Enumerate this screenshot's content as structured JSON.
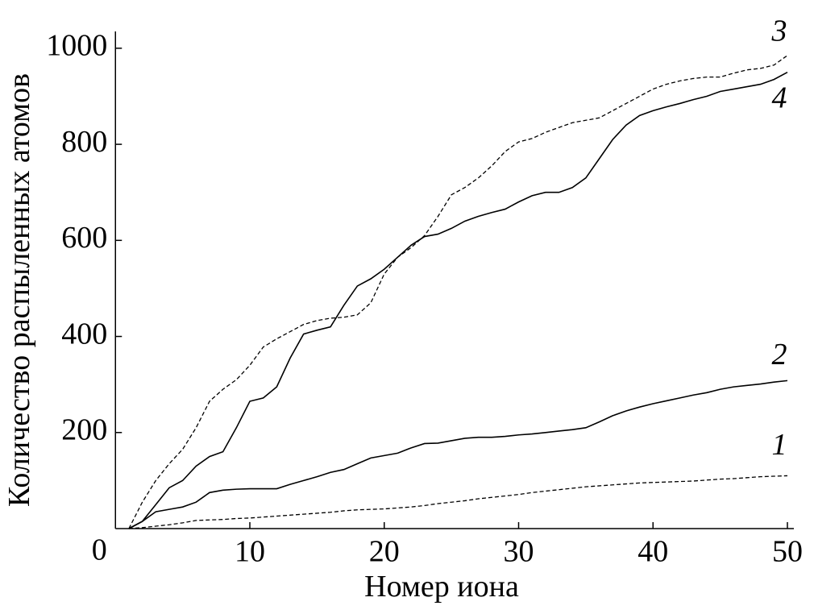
{
  "chart_data": {
    "type": "line",
    "y_label": "Количество распыленных атомов",
    "x_label": "Номер иона",
    "x": [
      1,
      2,
      3,
      4,
      5,
      6,
      7,
      8,
      9,
      10,
      11,
      12,
      13,
      14,
      15,
      16,
      17,
      18,
      19,
      20,
      21,
      22,
      23,
      24,
      25,
      26,
      27,
      28,
      29,
      30,
      31,
      32,
      33,
      34,
      35,
      36,
      37,
      38,
      39,
      40,
      41,
      42,
      43,
      44,
      45,
      46,
      47,
      48,
      49,
      50
    ],
    "series": [
      {
        "name": "1",
        "color": "#000000",
        "dash": true,
        "values": [
          0,
          2,
          5,
          8,
          12,
          17,
          18,
          19,
          21,
          22,
          24,
          26,
          28,
          30,
          32,
          34,
          37,
          39,
          40,
          41,
          43,
          45,
          48,
          52,
          55,
          58,
          62,
          65,
          68,
          71,
          75,
          78,
          81,
          84,
          87,
          89,
          91,
          93,
          95,
          96,
          97,
          98,
          99,
          101,
          103,
          104,
          106,
          108,
          109,
          110
        ]
      },
      {
        "name": "2",
        "color": "#000000",
        "dash": false,
        "values": [
          0,
          15,
          35,
          40,
          45,
          55,
          75,
          80,
          82,
          83,
          83,
          83,
          92,
          100,
          108,
          117,
          123,
          135,
          147,
          152,
          157,
          168,
          177,
          178,
          183,
          188,
          190,
          190,
          192,
          195,
          197,
          200,
          203,
          206,
          210,
          222,
          235,
          245,
          253,
          260,
          266,
          272,
          278,
          283,
          290,
          295,
          298,
          301,
          305,
          308
        ]
      },
      {
        "name": "3",
        "color": "#000000",
        "dash": true,
        "values": [
          0,
          55,
          100,
          135,
          165,
          210,
          265,
          290,
          310,
          340,
          378,
          395,
          410,
          425,
          433,
          438,
          440,
          445,
          470,
          530,
          565,
          585,
          610,
          650,
          695,
          710,
          730,
          755,
          785,
          805,
          812,
          825,
          835,
          845,
          850,
          855,
          870,
          885,
          900,
          915,
          925,
          932,
          937,
          940,
          940,
          948,
          955,
          958,
          965,
          985
        ]
      },
      {
        "name": "4",
        "color": "#000000",
        "dash": false,
        "values": [
          0,
          15,
          50,
          85,
          100,
          130,
          150,
          160,
          210,
          265,
          272,
          295,
          355,
          405,
          413,
          420,
          465,
          505,
          520,
          540,
          565,
          590,
          608,
          613,
          625,
          640,
          650,
          658,
          665,
          680,
          693,
          700,
          700,
          710,
          730,
          770,
          810,
          840,
          860,
          870,
          878,
          885,
          893,
          900,
          910,
          915,
          920,
          925,
          935,
          950
        ]
      }
    ],
    "xlim": [
      0,
      50
    ],
    "xticks": [
      0,
      10,
      20,
      30,
      40,
      50
    ],
    "ylim": [
      0,
      1035
    ],
    "yticks": [
      200,
      400,
      600,
      800,
      1000
    ],
    "grid": false
  }
}
